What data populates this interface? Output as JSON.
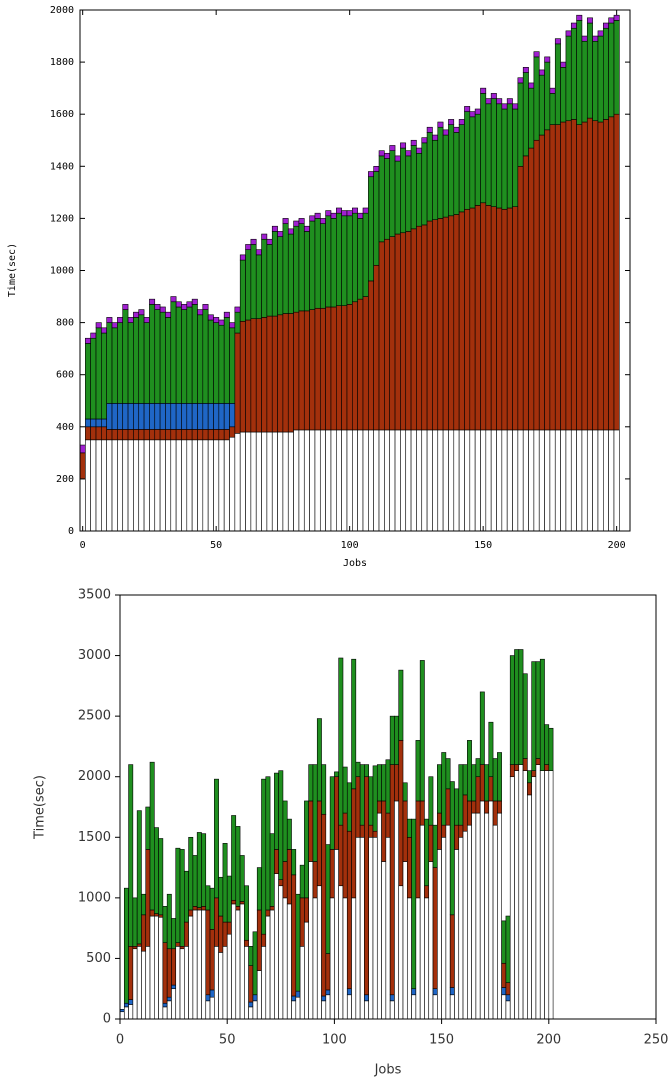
{
  "chart_data": [
    {
      "type": "bar",
      "stacked": true,
      "xlabel": "Jobs",
      "ylabel": "Time(sec)",
      "xlim": [
        -1,
        205
      ],
      "ylim": [
        0,
        2000
      ],
      "xticks": [
        0,
        50,
        100,
        150,
        200
      ],
      "yticks": [
        0,
        200,
        400,
        600,
        800,
        1000,
        1200,
        1400,
        1600,
        1800,
        2000
      ],
      "x": [
        0,
        2,
        4,
        6,
        8,
        10,
        12,
        14,
        16,
        18,
        20,
        22,
        24,
        26,
        28,
        30,
        32,
        34,
        36,
        38,
        40,
        42,
        44,
        46,
        48,
        50,
        52,
        54,
        56,
        58,
        60,
        62,
        64,
        66,
        68,
        70,
        72,
        74,
        76,
        78,
        80,
        82,
        84,
        86,
        88,
        90,
        92,
        94,
        96,
        98,
        100,
        102,
        104,
        106,
        108,
        110,
        112,
        114,
        116,
        118,
        120,
        122,
        124,
        126,
        128,
        130,
        132,
        134,
        136,
        138,
        140,
        142,
        144,
        146,
        148,
        150,
        152,
        154,
        156,
        158,
        160,
        162,
        164,
        166,
        168,
        170,
        172,
        174,
        176,
        178,
        180,
        182,
        184,
        186,
        188,
        190,
        192,
        194,
        196,
        198,
        200
      ],
      "series": [
        {
          "color": "#ffffff",
          "values": [
            200,
            350,
            350,
            350,
            350,
            350,
            350,
            350,
            350,
            350,
            350,
            350,
            350,
            350,
            350,
            350,
            350,
            350,
            350,
            350,
            350,
            350,
            350,
            350,
            350,
            350,
            350,
            350,
            360,
            375,
            380,
            380,
            380,
            380,
            380,
            380,
            380,
            380,
            380,
            380,
            388,
            388,
            388,
            388,
            388,
            388,
            388,
            388,
            388,
            388,
            388,
            388,
            388,
            388,
            388,
            388,
            388,
            388,
            388,
            388,
            388,
            388,
            388,
            388,
            388,
            388,
            388,
            388,
            388,
            388,
            388,
            388,
            388,
            388,
            388,
            388,
            388,
            388,
            388,
            388,
            388,
            388,
            388,
            388,
            388,
            388,
            388,
            388,
            388,
            388,
            388,
            388,
            388,
            388,
            388,
            388,
            388,
            388,
            388,
            388,
            388
          ]
        },
        {
          "color": "#a3300c",
          "values": [
            100,
            50,
            50,
            50,
            50,
            40,
            40,
            40,
            40,
            40,
            40,
            40,
            40,
            40,
            40,
            40,
            40,
            40,
            40,
            40,
            40,
            40,
            40,
            40,
            40,
            40,
            40,
            40,
            40,
            385,
            425,
            430,
            435,
            435,
            440,
            445,
            445,
            450,
            455,
            455,
            452,
            457,
            457,
            462,
            467,
            467,
            472,
            472,
            477,
            477,
            482,
            492,
            502,
            512,
            572,
            632,
            722,
            732,
            742,
            752,
            757,
            762,
            772,
            782,
            787,
            802,
            807,
            812,
            817,
            822,
            827,
            837,
            847,
            852,
            862,
            872,
            862,
            857,
            852,
            847,
            852,
            857,
            1012,
            1052,
            1082,
            1112,
            1132,
            1152,
            1172,
            1172,
            1182,
            1187,
            1192,
            1172,
            1182,
            1197,
            1187,
            1182,
            1192,
            1202,
            1212
          ]
        },
        {
          "color": "#1f66c6",
          "values": [
            0,
            30,
            30,
            30,
            30,
            100,
            100,
            100,
            100,
            100,
            100,
            100,
            100,
            100,
            100,
            100,
            100,
            100,
            100,
            100,
            100,
            100,
            100,
            100,
            100,
            100,
            100,
            100,
            90,
            0,
            0,
            0,
            0,
            0,
            0,
            0,
            0,
            0,
            0,
            0,
            0,
            0,
            0,
            0,
            0,
            0,
            0,
            0,
            0,
            0,
            0,
            0,
            0,
            0,
            0,
            0,
            0,
            0,
            0,
            0,
            0,
            0,
            0,
            0,
            0,
            0,
            0,
            0,
            0,
            0,
            0,
            0,
            0,
            0,
            0,
            0,
            0,
            0,
            0,
            0,
            0,
            0,
            0,
            0,
            0,
            0,
            0,
            0,
            0,
            0,
            0,
            0,
            0,
            0,
            0,
            0,
            0,
            0,
            0,
            0,
            0
          ]
        },
        {
          "color": "#1f8f1f",
          "values": [
            0,
            290,
            310,
            350,
            330,
            310,
            290,
            310,
            360,
            310,
            330,
            340,
            310,
            380,
            360,
            350,
            330,
            390,
            370,
            360,
            370,
            380,
            340,
            360,
            320,
            310,
            300,
            330,
            290,
            80,
            235,
            270,
            285,
            245,
            300,
            275,
            325,
            300,
            345,
            305,
            330,
            335,
            305,
            340,
            345,
            325,
            350,
            340,
            355,
            345,
            340,
            340,
            310,
            320,
            400,
            360,
            330,
            310,
            330,
            280,
            325,
            290,
            320,
            280,
            315,
            340,
            305,
            350,
            315,
            350,
            315,
            335,
            375,
            350,
            350,
            420,
            390,
            415,
            400,
            385,
            400,
            375,
            320,
            320,
            230,
            320,
            230,
            260,
            120,
            310,
            210,
            325,
            350,
            400,
            310,
            365,
            305,
            330,
            350,
            360,
            360
          ]
        },
        {
          "color": "#a020d0",
          "values": [
            30,
            20,
            20,
            20,
            20,
            20,
            20,
            20,
            20,
            20,
            20,
            20,
            20,
            20,
            20,
            20,
            20,
            20,
            20,
            20,
            20,
            20,
            20,
            20,
            20,
            20,
            20,
            20,
            20,
            20,
            20,
            20,
            20,
            20,
            20,
            20,
            20,
            20,
            20,
            20,
            20,
            20,
            20,
            20,
            20,
            20,
            20,
            20,
            20,
            20,
            20,
            20,
            20,
            20,
            20,
            20,
            20,
            20,
            20,
            20,
            20,
            20,
            20,
            20,
            20,
            20,
            20,
            20,
            20,
            20,
            20,
            20,
            20,
            20,
            20,
            20,
            20,
            20,
            20,
            20,
            20,
            20,
            20,
            20,
            20,
            20,
            20,
            20,
            20,
            20,
            20,
            20,
            20,
            20,
            20,
            20,
            20,
            20,
            20,
            20,
            20
          ]
        }
      ]
    },
    {
      "type": "bar",
      "stacked": true,
      "xlabel": "Jobs",
      "ylabel": "Time(sec)",
      "xlim": [
        0,
        250
      ],
      "ylim": [
        0,
        3500
      ],
      "xticks": [
        0,
        50,
        100,
        150,
        200,
        250
      ],
      "yticks": [
        0,
        500,
        1000,
        1500,
        2000,
        2500,
        3000,
        3500
      ],
      "x": [
        1,
        3,
        5,
        7,
        9,
        11,
        13,
        15,
        17,
        19,
        21,
        23,
        25,
        27,
        29,
        31,
        33,
        35,
        37,
        39,
        41,
        43,
        45,
        47,
        49,
        51,
        53,
        55,
        57,
        59,
        61,
        63,
        65,
        67,
        69,
        71,
        73,
        75,
        77,
        79,
        81,
        83,
        85,
        87,
        89,
        91,
        93,
        95,
        97,
        99,
        101,
        103,
        105,
        107,
        109,
        111,
        113,
        115,
        117,
        119,
        121,
        123,
        125,
        127,
        129,
        131,
        133,
        135,
        137,
        139,
        141,
        143,
        145,
        147,
        149,
        151,
        153,
        155,
        157,
        159,
        161,
        163,
        165,
        167,
        169,
        171,
        173,
        175,
        177,
        179,
        181,
        183,
        185,
        187,
        189,
        191,
        193,
        195,
        197,
        199,
        201
      ],
      "series": [
        {
          "color": "#ffffff",
          "values": [
            60,
            100,
            120,
            580,
            600,
            560,
            600,
            850,
            850,
            840,
            100,
            150,
            250,
            600,
            580,
            600,
            850,
            900,
            900,
            900,
            150,
            180,
            600,
            550,
            600,
            700,
            950,
            900,
            950,
            600,
            100,
            150,
            400,
            600,
            850,
            900,
            1200,
            1100,
            1000,
            950,
            150,
            180,
            600,
            800,
            1300,
            1000,
            1100,
            150,
            200,
            1000,
            1400,
            1100,
            1000,
            200,
            1000,
            1500,
            1500,
            150,
            1500,
            1500,
            1700,
            1300,
            1500,
            150,
            1800,
            1100,
            1300,
            1000,
            200,
            1000,
            1600,
            1000,
            1300,
            200,
            1400,
            1500,
            1600,
            200,
            1400,
            1500,
            1550,
            1600,
            1700,
            1700,
            1800,
            1700,
            1800,
            1600,
            1700,
            200,
            150,
            2000,
            2050,
            2100,
            2050,
            1850,
            2000,
            2100,
            2050,
            2050,
            2050
          ]
        },
        {
          "color": "#1f66c6",
          "values": [
            20,
            30,
            40,
            0,
            0,
            0,
            0,
            0,
            0,
            0,
            30,
            30,
            30,
            0,
            0,
            0,
            0,
            0,
            0,
            0,
            50,
            60,
            0,
            0,
            0,
            0,
            0,
            0,
            0,
            0,
            40,
            50,
            0,
            0,
            0,
            0,
            0,
            0,
            0,
            0,
            40,
            50,
            0,
            0,
            0,
            0,
            0,
            40,
            40,
            0,
            0,
            0,
            0,
            50,
            0,
            0,
            0,
            50,
            0,
            0,
            0,
            0,
            0,
            50,
            0,
            0,
            0,
            0,
            50,
            0,
            0,
            0,
            0,
            50,
            0,
            0,
            0,
            60,
            0,
            0,
            0,
            0,
            0,
            0,
            0,
            0,
            0,
            0,
            0,
            60,
            50,
            0,
            0,
            0,
            0,
            0,
            0,
            0,
            0,
            0,
            0
          ]
        },
        {
          "color": "#a3300c",
          "values": [
            0,
            0,
            440,
            20,
            20,
            300,
            800,
            50,
            20,
            20,
            500,
            400,
            300,
            30,
            20,
            200,
            50,
            30,
            20,
            30,
            700,
            500,
            400,
            300,
            200,
            100,
            30,
            30,
            20,
            50,
            300,
            0,
            500,
            100,
            50,
            30,
            200,
            50,
            300,
            450,
            1000,
            0,
            400,
            200,
            500,
            300,
            700,
            1500,
            300,
            400,
            600,
            500,
            700,
            1300,
            900,
            500,
            100,
            1800,
            100,
            50,
            100,
            500,
            200,
            1900,
            300,
            1200,
            500,
            500,
            0,
            800,
            200,
            100,
            300,
            1000,
            300,
            100,
            300,
            600,
            200,
            100,
            300,
            200,
            100,
            300,
            300,
            100,
            200,
            200,
            100,
            200,
            100,
            100,
            50,
            0,
            100,
            100,
            50,
            50,
            0,
            50,
            0
          ]
        },
        {
          "color": "#1f8f1f",
          "values": [
            0,
            950,
            1500,
            400,
            1100,
            170,
            350,
            1220,
            710,
            630,
            300,
            450,
            250,
            780,
            800,
            420,
            600,
            420,
            620,
            600,
            200,
            340,
            980,
            320,
            650,
            380,
            700,
            660,
            380,
            450,
            160,
            520,
            350,
            1280,
            1100,
            600,
            630,
            900,
            500,
            250,
            210,
            800,
            270,
            800,
            300,
            800,
            680,
            410,
            900,
            600,
            40,
            1380,
            380,
            400,
            1070,
            120,
            500,
            100,
            400,
            540,
            300,
            300,
            440,
            400,
            400,
            580,
            150,
            150,
            1400,
            500,
            1160,
            550,
            400,
            350,
            400,
            600,
            250,
            1100,
            300,
            500,
            250,
            500,
            300,
            150,
            600,
            300,
            450,
            350,
            400,
            350,
            550,
            900,
            950,
            950,
            700,
            100,
            900,
            800,
            920,
            330,
            350
          ]
        }
      ]
    }
  ]
}
